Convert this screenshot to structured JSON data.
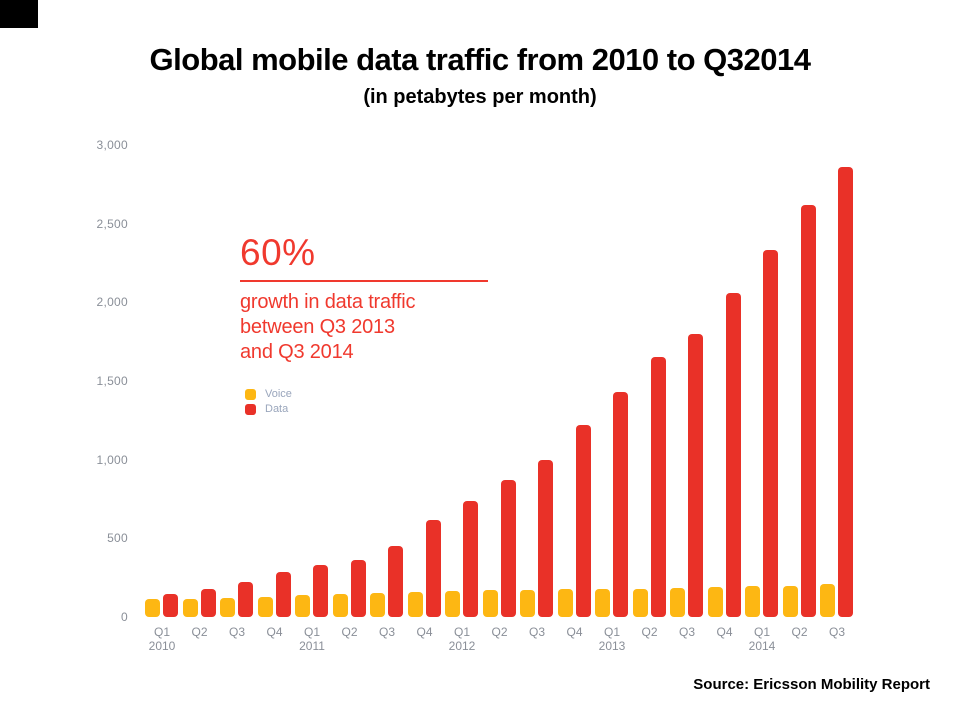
{
  "title": "Global mobile data traffic from 2010 to Q32014",
  "subtitle": "(in petabytes per month)",
  "annotation": {
    "headline": "60%",
    "lines": [
      "growth in data traffic",
      "between Q3 2013",
      "and Q3 2014"
    ],
    "color": "#f0392e"
  },
  "source": "Source:  Ericsson Mobility Report",
  "chart_data": {
    "type": "bar",
    "title": "Global mobile data traffic from 2010 to Q32014 (in petabytes per month)",
    "xlabel": "",
    "ylabel": "",
    "ylim": [
      0,
      3000
    ],
    "grid": false,
    "legend_position": "inside-left",
    "y_ticks": [
      0,
      500,
      1000,
      1500,
      2000,
      2500,
      3000
    ],
    "y_tick_labels": [
      "0",
      "500",
      "1,000",
      "1,500",
      "2,000",
      "2,500",
      "3,000"
    ],
    "x_ticks": [
      {
        "q": "Q1",
        "year": "2010"
      },
      {
        "q": "Q2"
      },
      {
        "q": "Q3"
      },
      {
        "q": "Q4"
      },
      {
        "q": "Q1",
        "year": "2011"
      },
      {
        "q": "Q2"
      },
      {
        "q": "Q3"
      },
      {
        "q": "Q4"
      },
      {
        "q": "Q1",
        "year": "2012"
      },
      {
        "q": "Q2"
      },
      {
        "q": "Q3"
      },
      {
        "q": "Q4"
      },
      {
        "q": "Q1",
        "year": "2013"
      },
      {
        "q": "Q2"
      },
      {
        "q": "Q3"
      },
      {
        "q": "Q4"
      },
      {
        "q": "Q1",
        "year": "2014"
      },
      {
        "q": "Q2"
      },
      {
        "q": "Q3"
      }
    ],
    "categories": [
      "Q1 2010",
      "Q2 2010",
      "Q3 2010",
      "Q4 2010",
      "Q1 2011",
      "Q2 2011",
      "Q3 2011",
      "Q4 2011",
      "Q1 2012",
      "Q2 2012",
      "Q3 2012",
      "Q4 2012",
      "Q1 2013",
      "Q2 2013",
      "Q3 2013",
      "Q4 2013",
      "Q1 2014",
      "Q2 2014",
      "Q3 2014"
    ],
    "series": [
      {
        "name": "Voice",
        "color": "#FDB713",
        "values": [
          115,
          115,
          120,
          130,
          140,
          145,
          150,
          160,
          165,
          170,
          170,
          175,
          180,
          180,
          185,
          190,
          195,
          200,
          210
        ]
      },
      {
        "name": "Data",
        "color": "#E93128",
        "values": [
          145,
          180,
          220,
          285,
          330,
          365,
          450,
          615,
          740,
          870,
          1000,
          1220,
          1430,
          1650,
          1800,
          2060,
          2330,
          2620,
          2860
        ]
      }
    ]
  }
}
